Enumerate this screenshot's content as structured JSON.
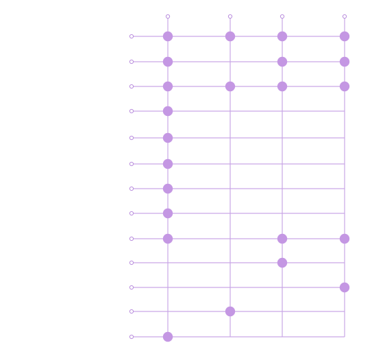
{
  "colors": {
    "line": "#c9a6e6",
    "dot": "#c497e3",
    "terminal_stroke": "#b98ddd",
    "background": "#ffffff"
  },
  "columns": [
    {
      "id": "c1"
    },
    {
      "id": "c2"
    },
    {
      "id": "c3"
    },
    {
      "id": "c4"
    }
  ],
  "rows": [
    {
      "id": "r1",
      "connections": [
        true,
        true,
        true,
        true
      ]
    },
    {
      "id": "r2",
      "connections": [
        true,
        false,
        true,
        true
      ]
    },
    {
      "id": "r3",
      "connections": [
        true,
        true,
        true,
        true
      ]
    },
    {
      "id": "r4",
      "connections": [
        true,
        false,
        false,
        false
      ]
    },
    {
      "id": "r5",
      "connections": [
        true,
        false,
        false,
        false
      ]
    },
    {
      "id": "r6",
      "connections": [
        true,
        false,
        false,
        false
      ]
    },
    {
      "id": "r7",
      "connections": [
        true,
        false,
        false,
        false
      ]
    },
    {
      "id": "r8",
      "connections": [
        true,
        false,
        false,
        false
      ]
    },
    {
      "id": "r9",
      "connections": [
        true,
        false,
        true,
        true
      ]
    },
    {
      "id": "r10",
      "connections": [
        false,
        false,
        true,
        false
      ]
    },
    {
      "id": "r11",
      "connections": [
        false,
        false,
        false,
        true
      ]
    },
    {
      "id": "r12",
      "connections": [
        false,
        true,
        false,
        false
      ]
    },
    {
      "id": "r13",
      "connections": [
        true,
        false,
        false,
        false
      ]
    }
  ]
}
